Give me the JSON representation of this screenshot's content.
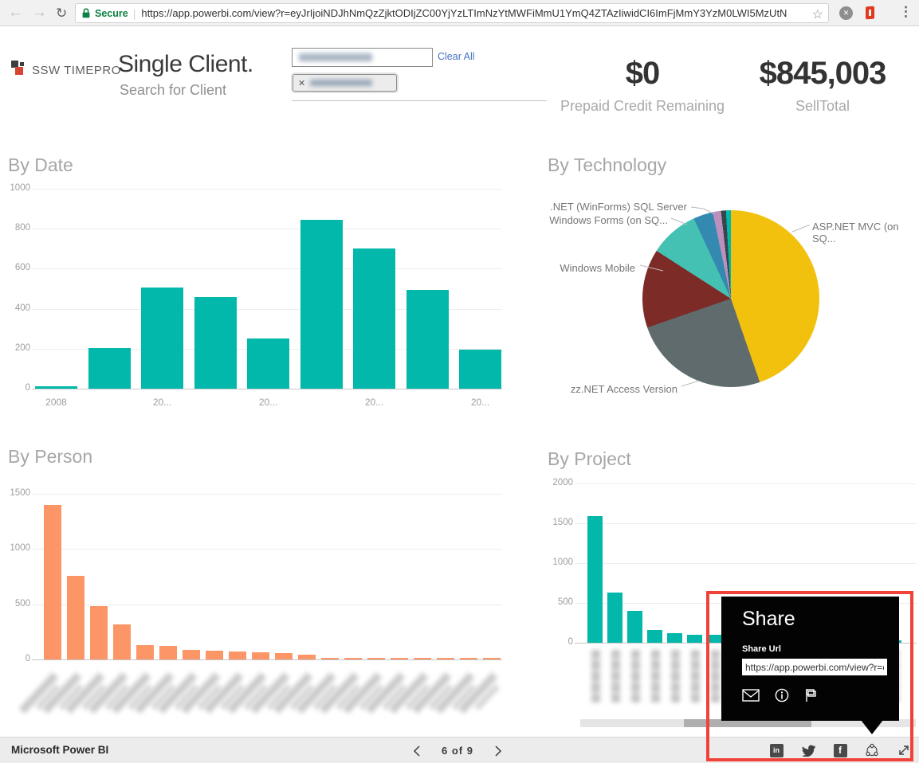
{
  "browser": {
    "secure_label": "Secure",
    "url": "https://app.powerbi.com/view?r=eyJrIjoiNDJhNmQzZjktODIjZC00YjYzLTImNzYtMWFiMmU1YmQ4ZTAzIiwidCI6ImFjMmY3YzM0LWI5MzUtN"
  },
  "header": {
    "logo_text": "SSW TIMEPRO",
    "title": "Single Client.",
    "subtitle": "Search for Client",
    "clear_all_label": "Clear All"
  },
  "kpis": [
    {
      "value": "$0",
      "label": "Prepaid Credit Remaining"
    },
    {
      "value": "$845,003",
      "label": "SellTotal"
    }
  ],
  "chart_data": [
    {
      "type": "bar",
      "title": "By Date",
      "categories": [
        "2008",
        "",
        "20...",
        "",
        "20...",
        "",
        "20...",
        "",
        "20..."
      ],
      "values": [
        10,
        205,
        505,
        460,
        250,
        845,
        700,
        495,
        195
      ],
      "xlabel": "",
      "ylabel": "",
      "ylim": [
        0,
        1000
      ],
      "yticks": [
        0,
        200,
        400,
        600,
        800,
        1000
      ],
      "grid": true,
      "color": "#01B8AA"
    },
    {
      "type": "pie",
      "title": "By Technology",
      "slices": [
        {
          "label": "ASP.NET MVC (on SQ...",
          "value": 44.7,
          "color": "#F2C10E"
        },
        {
          "label": "zz.NET Access Version",
          "value": 25.0,
          "color": "#5F6B6D"
        },
        {
          "label": "Windows Mobile",
          "value": 14.4,
          "color": "#7D2B27"
        },
        {
          "label": "Windows Forms (on SQ...",
          "value": 9.0,
          "color": "#45C1B4"
        },
        {
          "label": ".NET (WinForms) SQL Server",
          "value": 3.6,
          "color": "#3389B0"
        },
        {
          "label": "",
          "value": 1.5,
          "color": "#BD8FBC"
        },
        {
          "label": "",
          "value": 0.9,
          "color": "#374649"
        },
        {
          "label": "",
          "value": 0.9,
          "color": "#01B8AA"
        }
      ],
      "legend_position": "labels-with-leader-lines"
    },
    {
      "type": "bar",
      "title": "By Person",
      "values": [
        1400,
        760,
        480,
        320,
        130,
        120,
        85,
        80,
        70,
        65,
        55,
        45,
        15,
        10,
        8,
        8,
        8,
        8,
        5,
        5
      ],
      "xlabel": "",
      "ylabel": "",
      "ylim": [
        0,
        1500
      ],
      "yticks": [
        0,
        500,
        1000,
        1500
      ],
      "grid": true,
      "color": "#FC9666",
      "x_labels_redacted": true
    },
    {
      "type": "bar",
      "title": "By Project",
      "values": [
        1590,
        630,
        400,
        155,
        115,
        100,
        100,
        95,
        90,
        85,
        80,
        75,
        70,
        60,
        40,
        25
      ],
      "xlabel": "",
      "ylabel": "",
      "ylim": [
        0,
        2000
      ],
      "yticks": [
        0,
        500,
        1000,
        1500,
        2000
      ],
      "grid": true,
      "color": "#01B8AA",
      "x_labels_redacted": true
    }
  ],
  "share": {
    "title": "Share",
    "url_label": "Share Url",
    "url_value": "https://app.powerbi.com/view?r=e"
  },
  "footer": {
    "brand": "Microsoft Power BI",
    "page_indicator": "6 of 9"
  }
}
